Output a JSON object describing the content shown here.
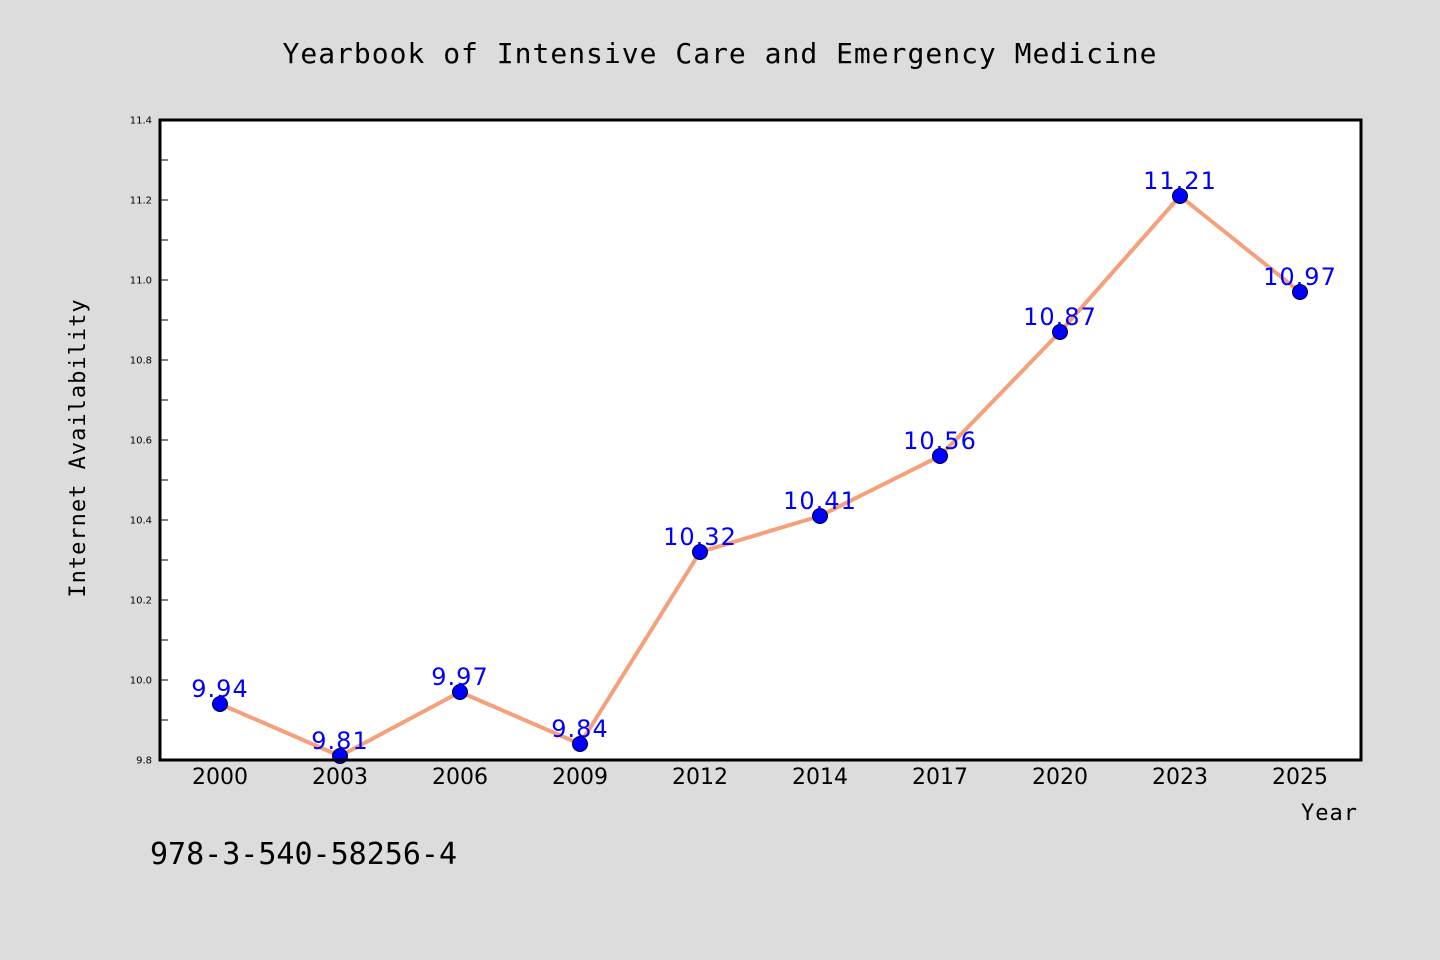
{
  "chart_data": {
    "type": "line",
    "title": "Yearbook of Intensive Care and Emergency Medicine",
    "xlabel": "Year",
    "ylabel": "Internet Availability",
    "categories": [
      "2000",
      "2003",
      "2006",
      "2009",
      "2012",
      "2014",
      "2017",
      "2020",
      "2023",
      "2025"
    ],
    "values": [
      9.94,
      9.81,
      9.97,
      9.84,
      10.32,
      10.41,
      10.56,
      10.87,
      11.21,
      10.97
    ],
    "value_labels": [
      "9.94",
      "9.81",
      "9.97",
      "9.84",
      "10.32",
      "10.41",
      "10.56",
      "10.87",
      "11.21",
      "10.97"
    ],
    "ylim": [
      9.8,
      11.4
    ],
    "yticks": [
      9.8,
      10.0,
      10.2,
      10.4,
      10.6,
      10.8,
      11.0,
      11.2,
      11.4
    ],
    "ytick_labels": [
      "9.8",
      "10.0",
      "10.2",
      "10.4",
      "10.6",
      "10.8",
      "11.0",
      "11.2",
      "11.4"
    ],
    "grid": false,
    "colors": {
      "line": "#f4a07a",
      "marker": "#0000ff",
      "data_label": "#0000ff",
      "background": "#dcdcdc",
      "plot_background": "#ffffff"
    }
  },
  "footer": {
    "isbn": "978-3-540-58256-4"
  }
}
